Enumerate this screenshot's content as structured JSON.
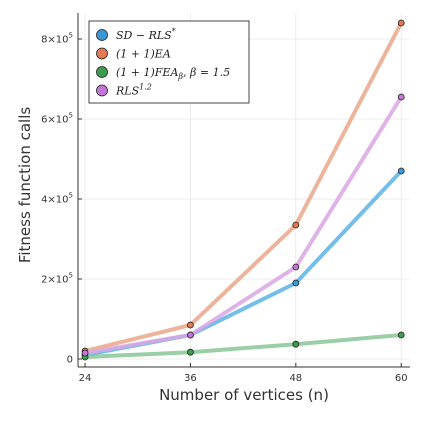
{
  "chart_data": {
    "type": "line",
    "xlabel": "Number of vertices (n)",
    "ylabel": "Fitness function calls",
    "x": [
      24,
      36,
      48,
      60
    ],
    "x_ticks": [
      "24",
      "36",
      "48",
      "60"
    ],
    "y_ticks": [
      {
        "value": 0,
        "mantissa": "0",
        "exponent": ""
      },
      {
        "value": 200000,
        "mantissa": "2×10",
        "exponent": "5"
      },
      {
        "value": 400000,
        "mantissa": "4×10",
        "exponent": "5"
      },
      {
        "value": 600000,
        "mantissa": "6×10",
        "exponent": "5"
      },
      {
        "value": 800000,
        "mantissa": "8×10",
        "exponent": "5"
      }
    ],
    "xlim": [
      23.2,
      61
    ],
    "ylim": [
      -20000,
      865000
    ],
    "grid": true,
    "legend_position": "top-left",
    "series": [
      {
        "name": "SD − RLS*",
        "color": "#5ab4e6",
        "marker_color": "#3a9ad9",
        "values": [
          10000,
          60000,
          190000,
          470000
        ]
      },
      {
        "name": "(1 + 1)EA",
        "color": "#e9a88a",
        "marker_color": "#e07b54",
        "values": [
          20000,
          85000,
          335000,
          840000
        ]
      },
      {
        "name": "(1 + 1)FEAβ, β = 1.5",
        "color": "#88c596",
        "marker_color": "#3e9b4f",
        "values": [
          5000,
          17000,
          37000,
          60000
        ]
      },
      {
        "name": "RLS^1.2",
        "color": "#d9a6e3",
        "marker_color": "#c277d4",
        "values": [
          15000,
          60000,
          230000,
          655000
        ]
      }
    ],
    "legend_labels": [
      {
        "base": "SD − RLS",
        "sup": "*",
        "sub": ""
      },
      {
        "base": "(1 + 1)EA",
        "sup": "",
        "sub": ""
      },
      {
        "base": "(1 + 1)FEA",
        "sup": "",
        "sub": "β",
        "tail": ", β = 1.5"
      },
      {
        "base": "RLS",
        "sup": "1.2",
        "sub": ""
      }
    ]
  }
}
